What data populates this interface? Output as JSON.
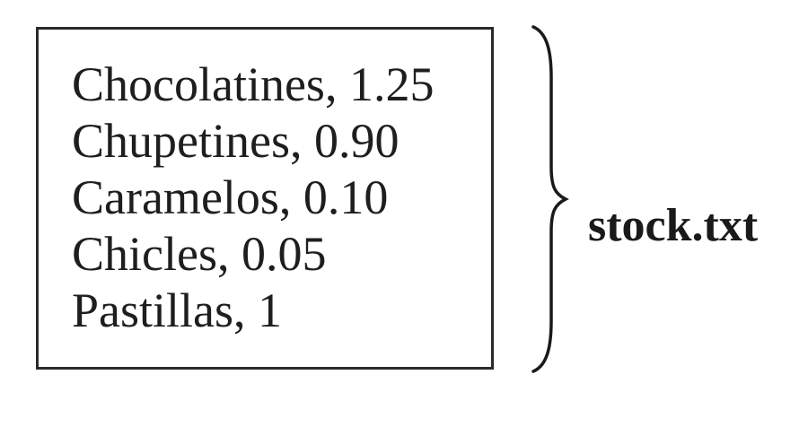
{
  "file": {
    "name": "stock.txt",
    "lines": [
      "Chocolatines, 1.25",
      "Chupetines, 0.90",
      "Caramelos, 0.10",
      "Chicles, 0.05",
      "Pastillas, 1"
    ]
  },
  "icons": {
    "brace": "right-curly-brace-icon"
  }
}
